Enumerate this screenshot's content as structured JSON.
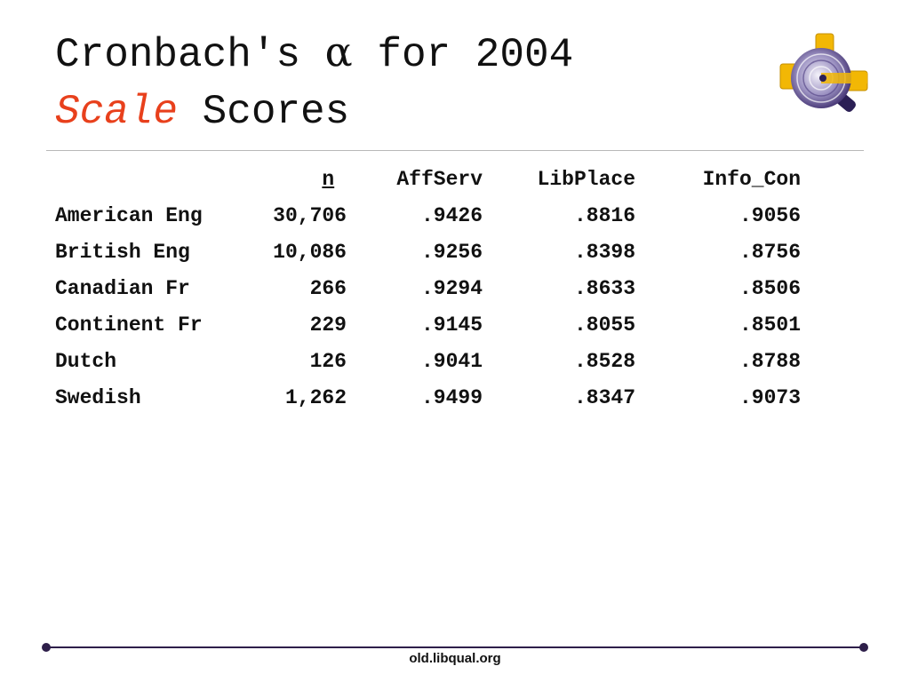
{
  "title": {
    "line1_prefix": "Cronbach's ",
    "alpha": "α",
    "line1_suffix": " for 2004",
    "line2_accent": "Scale",
    "line2_rest": " Scores",
    "accent_color": "#e8401c"
  },
  "logo": {
    "icon": "libqual-logo-icon",
    "colors": {
      "gold": "#f2b705",
      "purple": "#3b2a6b",
      "lavender": "#8a7fb0"
    }
  },
  "table": {
    "headers": {
      "label": "",
      "n": "n",
      "affserv": "AffServ",
      "libplace": "LibPlace",
      "infocon": "Info_Con"
    },
    "rows": [
      {
        "label": "American Eng",
        "n": "30,706",
        "affserv": ".9426",
        "libplace": ".8816",
        "infocon": ".9056"
      },
      {
        "label": "British Eng",
        "n": "10,086",
        "affserv": ".9256",
        "libplace": ".8398",
        "infocon": ".8756"
      },
      {
        "label": "Canadian Fr",
        "n": "266",
        "affserv": ".9294",
        "libplace": ".8633",
        "infocon": ".8506"
      },
      {
        "label": "Continent Fr",
        "n": "229",
        "affserv": ".9145",
        "libplace": ".8055",
        "infocon": ".8501"
      },
      {
        "label": "Dutch",
        "n": "126",
        "affserv": ".9041",
        "libplace": ".8528",
        "infocon": ".8788"
      },
      {
        "label": "Swedish",
        "n": "1,262",
        "affserv": ".9499",
        "libplace": ".8347",
        "infocon": ".9073"
      }
    ]
  },
  "footer": {
    "text": "old.libqual.org",
    "line_color": "#2e1f4a"
  }
}
